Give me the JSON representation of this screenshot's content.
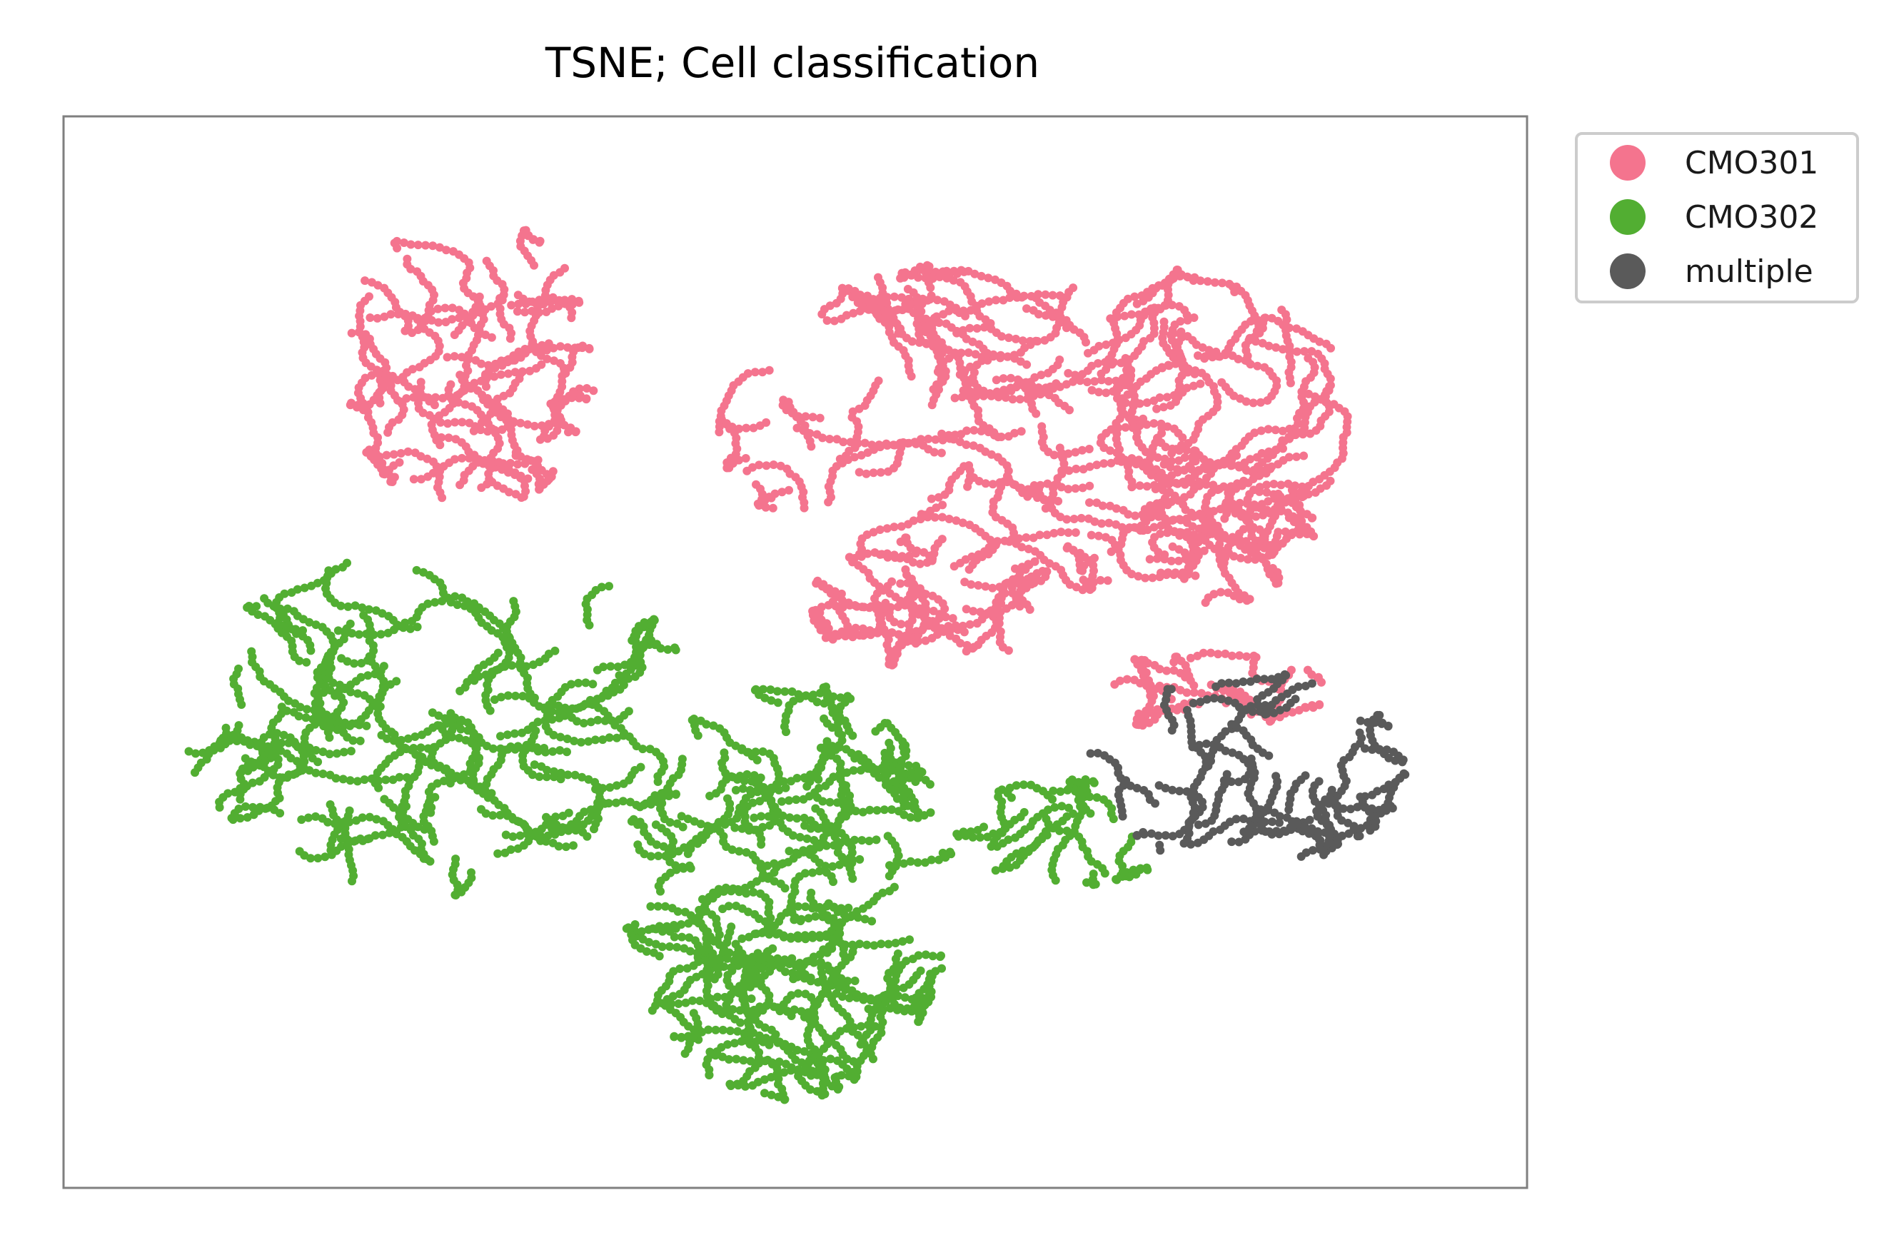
{
  "chart_data": {
    "type": "scatter",
    "title": "TSNE; Cell classification",
    "xlabel": "",
    "ylabel": "",
    "xlim": [
      0,
      100
    ],
    "ylim": [
      0,
      100
    ],
    "grid": false,
    "ticks": false,
    "legend_placement": "outside-top-right",
    "series": [
      {
        "name": "CMO301",
        "color": "#f4748e",
        "clusters": [
          {
            "x": [
              16,
              35
            ],
            "y": [
              64,
              95
            ],
            "n": 650
          },
          {
            "x": [
              44,
              93
            ],
            "y": [
              56,
              91
            ],
            "n": 1500
          },
          {
            "x": [
              51,
              70
            ],
            "y": [
              48,
              62
            ],
            "n": 350
          },
          {
            "x": [
              70,
              89
            ],
            "y": [
              54,
              71
            ],
            "n": 300
          },
          {
            "x": [
              71,
              90
            ],
            "y": [
              42,
              50
            ],
            "n": 160
          }
        ]
      },
      {
        "name": "CMO302",
        "color": "#52ae32",
        "clusters": [
          {
            "x": [
              4,
              43
            ],
            "y": [
              25,
              61
            ],
            "n": 1100
          },
          {
            "x": [
              37,
              62
            ],
            "y": [
              4,
              47
            ],
            "n": 1400
          },
          {
            "x": [
              62,
              79
            ],
            "y": [
              26,
              37
            ],
            "n": 180
          }
        ]
      },
      {
        "name": "multiple",
        "color": "#5a5a5a",
        "clusters": [
          {
            "x": [
              72,
              96
            ],
            "y": [
              28,
              48
            ],
            "n": 420
          }
        ]
      }
    ]
  }
}
